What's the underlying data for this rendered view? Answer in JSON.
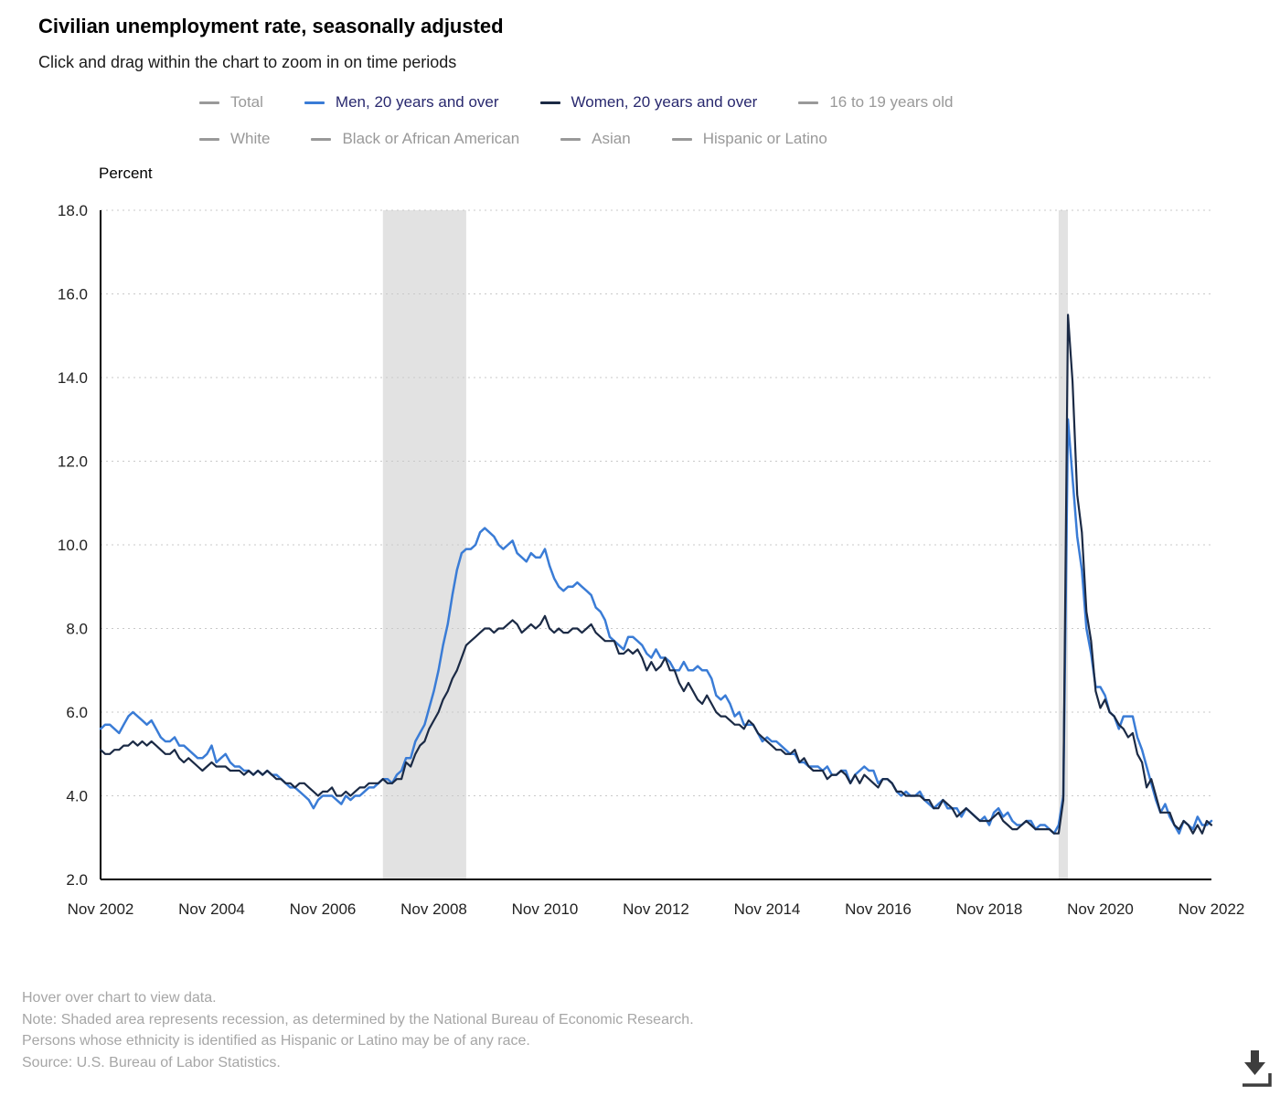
{
  "page": {
    "title": "Civilian unemployment rate, seasonally adjusted",
    "subtitle": "Click and drag within the chart to zoom in on time periods",
    "y_axis_title": "Percent",
    "notes": [
      "Hover over chart to view data.",
      "Note: Shaded area represents recession, as determined by the National Bureau of Economic Research.",
      "Persons whose ethnicity is identified as Hispanic or Latino may be of any race.",
      "Source: U.S. Bureau of Labor Statistics."
    ]
  },
  "colors": {
    "men_line": "#3a7cd6",
    "women_line": "#1b2a45",
    "inactive_legend": "#999999",
    "active_legend_text": "#28286e",
    "inactive_legend_text": "#999999",
    "gridline": "#c9c9c9",
    "axis": "#000000",
    "recession_band": "#e2e2e2",
    "tick_label": "#222222"
  },
  "legend": {
    "items": [
      {
        "label": "Total",
        "active": false,
        "color": "#999999"
      },
      {
        "label": "Men, 20 years and over",
        "active": true,
        "color": "#3a7cd6"
      },
      {
        "label": "Women, 20 years and over",
        "active": true,
        "color": "#1b2a45"
      },
      {
        "label": "16 to 19 years old",
        "active": false,
        "color": "#999999"
      },
      {
        "label": "White",
        "active": false,
        "color": "#999999"
      },
      {
        "label": "Black or African American",
        "active": false,
        "color": "#999999"
      },
      {
        "label": "Asian",
        "active": false,
        "color": "#999999"
      },
      {
        "label": "Hispanic or Latino",
        "active": false,
        "color": "#999999"
      }
    ]
  },
  "chart_data": {
    "type": "line",
    "title": "Civilian unemployment rate, seasonally adjusted",
    "xlabel": "",
    "ylabel": "Percent",
    "ylim": [
      2.0,
      18.0
    ],
    "yticks": [
      2.0,
      4.0,
      6.0,
      8.0,
      10.0,
      12.0,
      14.0,
      16.0,
      18.0
    ],
    "grid": "horizontal-dotted",
    "legend_position": "top",
    "x_unit": "month",
    "x_range": [
      "Nov 2002",
      "Nov 2022"
    ],
    "x_tick_labels": [
      "Nov 2002",
      "Nov 2004",
      "Nov 2006",
      "Nov 2008",
      "Nov 2010",
      "Nov 2012",
      "Nov 2014",
      "Nov 2016",
      "Nov 2018",
      "Nov 2020",
      "Nov 2022"
    ],
    "x_tick_indices": [
      0,
      24,
      48,
      72,
      96,
      120,
      144,
      168,
      192,
      216,
      240
    ],
    "recession_bands_month_indices": [
      [
        61,
        79
      ],
      [
        207,
        209
      ]
    ],
    "series": [
      {
        "name": "Men, 20 years and over",
        "color": "#3a7cd6",
        "values": [
          5.6,
          5.7,
          5.7,
          5.6,
          5.5,
          5.7,
          5.9,
          6.0,
          5.9,
          5.8,
          5.7,
          5.8,
          5.6,
          5.4,
          5.3,
          5.3,
          5.4,
          5.2,
          5.2,
          5.1,
          5.0,
          4.9,
          4.9,
          5.0,
          5.2,
          4.8,
          4.9,
          5.0,
          4.8,
          4.7,
          4.7,
          4.6,
          4.6,
          4.5,
          4.6,
          4.5,
          4.6,
          4.5,
          4.5,
          4.4,
          4.3,
          4.2,
          4.2,
          4.1,
          4.0,
          3.9,
          3.7,
          3.9,
          4.0,
          4.0,
          4.0,
          3.9,
          3.8,
          4.0,
          3.9,
          4.0,
          4.0,
          4.1,
          4.2,
          4.2,
          4.3,
          4.4,
          4.4,
          4.3,
          4.5,
          4.6,
          4.9,
          4.9,
          5.3,
          5.5,
          5.7,
          6.1,
          6.5,
          7.0,
          7.6,
          8.1,
          8.8,
          9.4,
          9.8,
          9.9,
          9.9,
          10.0,
          10.3,
          10.4,
          10.3,
          10.2,
          10.0,
          9.9,
          10.0,
          10.1,
          9.8,
          9.7,
          9.6,
          9.8,
          9.7,
          9.7,
          9.9,
          9.5,
          9.2,
          9.0,
          8.9,
          9.0,
          9.0,
          9.1,
          9.0,
          8.9,
          8.8,
          8.5,
          8.4,
          8.2,
          7.8,
          7.7,
          7.6,
          7.5,
          7.8,
          7.8,
          7.7,
          7.6,
          7.4,
          7.3,
          7.5,
          7.3,
          7.3,
          7.2,
          7.0,
          7.0,
          7.2,
          7.0,
          7.0,
          7.1,
          7.0,
          7.0,
          6.8,
          6.4,
          6.3,
          6.4,
          6.2,
          5.9,
          6.0,
          5.7,
          5.7,
          5.7,
          5.5,
          5.3,
          5.4,
          5.3,
          5.3,
          5.2,
          5.1,
          5.0,
          5.0,
          4.8,
          4.8,
          4.7,
          4.7,
          4.7,
          4.6,
          4.7,
          4.5,
          4.5,
          4.6,
          4.6,
          4.3,
          4.5,
          4.6,
          4.7,
          4.6,
          4.6,
          4.3,
          4.4,
          4.4,
          4.3,
          4.1,
          4.0,
          4.1,
          4.0,
          4.0,
          4.1,
          3.9,
          3.8,
          3.7,
          3.8,
          3.9,
          3.7,
          3.7,
          3.7,
          3.5,
          3.7,
          3.6,
          3.5,
          3.4,
          3.5,
          3.3,
          3.6,
          3.7,
          3.5,
          3.6,
          3.4,
          3.3,
          3.3,
          3.4,
          3.4,
          3.2,
          3.3,
          3.3,
          3.2,
          3.1,
          3.3,
          4.0,
          13.0,
          11.6,
          10.2,
          9.4,
          8.0,
          7.4,
          6.6,
          6.6,
          6.4,
          6.0,
          5.9,
          5.6,
          5.9,
          5.9,
          5.9,
          5.4,
          5.1,
          4.7,
          4.3,
          3.9,
          3.6,
          3.8,
          3.5,
          3.3,
          3.1,
          3.4,
          3.3,
          3.2,
          3.5,
          3.3,
          3.3,
          3.4
        ]
      },
      {
        "name": "Women, 20 years and over",
        "color": "#1b2a45",
        "values": [
          5.1,
          5.0,
          5.0,
          5.1,
          5.1,
          5.2,
          5.2,
          5.3,
          5.2,
          5.3,
          5.2,
          5.3,
          5.2,
          5.1,
          5.0,
          5.0,
          5.1,
          4.9,
          4.8,
          4.9,
          4.8,
          4.7,
          4.6,
          4.7,
          4.8,
          4.7,
          4.7,
          4.7,
          4.6,
          4.6,
          4.6,
          4.5,
          4.6,
          4.5,
          4.6,
          4.5,
          4.6,
          4.5,
          4.4,
          4.4,
          4.3,
          4.3,
          4.2,
          4.3,
          4.3,
          4.2,
          4.1,
          4.0,
          4.1,
          4.1,
          4.2,
          4.0,
          4.0,
          4.1,
          4.0,
          4.1,
          4.2,
          4.2,
          4.3,
          4.3,
          4.3,
          4.4,
          4.3,
          4.3,
          4.4,
          4.4,
          4.8,
          4.7,
          5.0,
          5.2,
          5.3,
          5.6,
          5.8,
          6.0,
          6.3,
          6.5,
          6.8,
          7.0,
          7.3,
          7.6,
          7.7,
          7.8,
          7.9,
          8.0,
          8.0,
          7.9,
          8.0,
          8.0,
          8.1,
          8.2,
          8.1,
          7.9,
          8.0,
          8.1,
          8.0,
          8.1,
          8.3,
          8.0,
          7.9,
          8.0,
          7.9,
          7.9,
          8.0,
          8.0,
          7.9,
          8.0,
          8.1,
          7.9,
          7.8,
          7.7,
          7.7,
          7.7,
          7.4,
          7.4,
          7.5,
          7.4,
          7.5,
          7.3,
          7.0,
          7.2,
          7.0,
          7.1,
          7.3,
          7.0,
          7.0,
          6.7,
          6.5,
          6.7,
          6.5,
          6.3,
          6.2,
          6.4,
          6.2,
          6.0,
          5.9,
          5.9,
          5.8,
          5.7,
          5.7,
          5.6,
          5.8,
          5.7,
          5.5,
          5.4,
          5.3,
          5.2,
          5.1,
          5.1,
          5.0,
          5.0,
          5.1,
          4.8,
          4.9,
          4.7,
          4.6,
          4.6,
          4.6,
          4.4,
          4.5,
          4.5,
          4.6,
          4.5,
          4.3,
          4.5,
          4.3,
          4.5,
          4.4,
          4.3,
          4.2,
          4.4,
          4.4,
          4.3,
          4.1,
          4.1,
          4.0,
          4.0,
          4.0,
          4.0,
          3.9,
          3.9,
          3.7,
          3.7,
          3.9,
          3.8,
          3.7,
          3.5,
          3.6,
          3.7,
          3.6,
          3.5,
          3.4,
          3.4,
          3.4,
          3.5,
          3.6,
          3.4,
          3.3,
          3.2,
          3.2,
          3.3,
          3.4,
          3.3,
          3.2,
          3.2,
          3.2,
          3.2,
          3.1,
          3.1,
          3.9,
          15.5,
          13.9,
          11.2,
          10.3,
          8.4,
          7.7,
          6.5,
          6.1,
          6.3,
          6.0,
          5.9,
          5.7,
          5.6,
          5.4,
          5.5,
          5.0,
          4.8,
          4.2,
          4.4,
          4.0,
          3.6,
          3.6,
          3.6,
          3.3,
          3.2,
          3.4,
          3.3,
          3.1,
          3.3,
          3.1,
          3.4,
          3.3
        ]
      }
    ]
  }
}
